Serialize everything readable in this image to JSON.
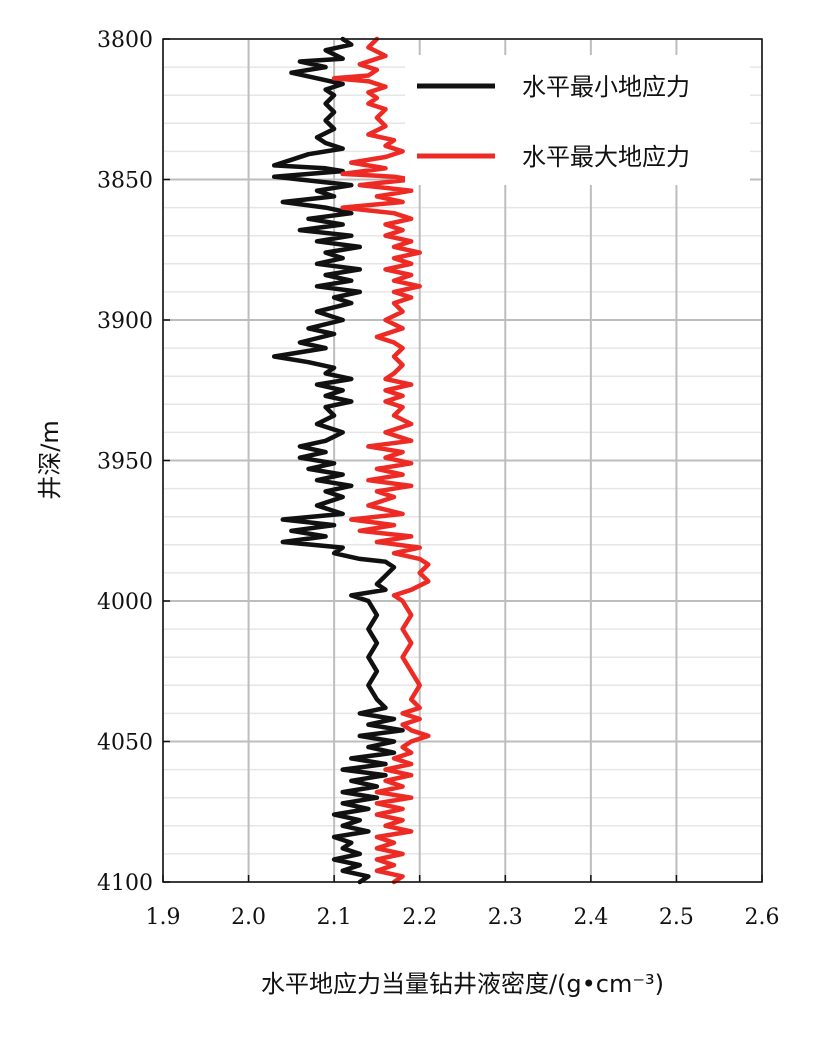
{
  "chart_data": {
    "type": "line",
    "xlabel": "水平地应力当量钻井液密度/(g•cm⁻³)",
    "ylabel": "井深/m",
    "xlim": [
      1.9,
      2.6
    ],
    "ylim": [
      3800,
      4100
    ],
    "y_inverted": true,
    "x_ticks": [
      "1.9",
      "2.0",
      "2.1",
      "2.2",
      "2.3",
      "2.4",
      "2.5",
      "2.6"
    ],
    "y_ticks": [
      "3800",
      "3850",
      "3900",
      "3950",
      "4000",
      "4050",
      "4100"
    ],
    "grid": true,
    "legend_position": "top-right",
    "series": [
      {
        "name": "水平最小地应力",
        "color": "#111111",
        "points": [
          [
            2.11,
            3800
          ],
          [
            2.12,
            3802
          ],
          [
            2.09,
            3804
          ],
          [
            2.11,
            3807
          ],
          [
            2.06,
            3808
          ],
          [
            2.09,
            3810
          ],
          [
            2.05,
            3812
          ],
          [
            2.08,
            3814
          ],
          [
            2.11,
            3816
          ],
          [
            2.09,
            3818
          ],
          [
            2.1,
            3820
          ],
          [
            2.09,
            3823
          ],
          [
            2.1,
            3826
          ],
          [
            2.09,
            3829
          ],
          [
            2.1,
            3832
          ],
          [
            2.08,
            3835
          ],
          [
            2.09,
            3837
          ],
          [
            2.11,
            3839
          ],
          [
            2.07,
            3841
          ],
          [
            2.05,
            3843
          ],
          [
            2.03,
            3845
          ],
          [
            2.09,
            3846
          ],
          [
            2.11,
            3847
          ],
          [
            2.03,
            3849
          ],
          [
            2.06,
            3850
          ],
          [
            2.12,
            3852
          ],
          [
            2.08,
            3854
          ],
          [
            2.1,
            3856
          ],
          [
            2.04,
            3858
          ],
          [
            2.09,
            3860
          ],
          [
            2.12,
            3862
          ],
          [
            2.07,
            3864
          ],
          [
            2.11,
            3866
          ],
          [
            2.06,
            3868
          ],
          [
            2.12,
            3870
          ],
          [
            2.08,
            3872
          ],
          [
            2.13,
            3874
          ],
          [
            2.09,
            3876
          ],
          [
            2.11,
            3878
          ],
          [
            2.08,
            3880
          ],
          [
            2.13,
            3882
          ],
          [
            2.09,
            3884
          ],
          [
            2.12,
            3886
          ],
          [
            2.08,
            3888
          ],
          [
            2.13,
            3890
          ],
          [
            2.1,
            3892
          ],
          [
            2.12,
            3894
          ],
          [
            2.08,
            3897
          ],
          [
            2.11,
            3900
          ],
          [
            2.07,
            3903
          ],
          [
            2.1,
            3905
          ],
          [
            2.06,
            3908
          ],
          [
            2.09,
            3910
          ],
          [
            2.03,
            3913
          ],
          [
            2.07,
            3915
          ],
          [
            2.1,
            3917
          ],
          [
            2.09,
            3919
          ],
          [
            2.12,
            3921
          ],
          [
            2.08,
            3923
          ],
          [
            2.11,
            3925
          ],
          [
            2.09,
            3927
          ],
          [
            2.12,
            3929
          ],
          [
            2.09,
            3931
          ],
          [
            2.1,
            3934
          ],
          [
            2.08,
            3937
          ],
          [
            2.11,
            3940
          ],
          [
            2.09,
            3943
          ],
          [
            2.06,
            3945
          ],
          [
            2.09,
            3947
          ],
          [
            2.06,
            3949
          ],
          [
            2.1,
            3951
          ],
          [
            2.07,
            3953
          ],
          [
            2.11,
            3955
          ],
          [
            2.08,
            3957
          ],
          [
            2.12,
            3959
          ],
          [
            2.09,
            3961
          ],
          [
            2.11,
            3963
          ],
          [
            2.08,
            3966
          ],
          [
            2.11,
            3969
          ],
          [
            2.04,
            3971
          ],
          [
            2.1,
            3973
          ],
          [
            2.05,
            3975
          ],
          [
            2.09,
            3977
          ],
          [
            2.04,
            3979
          ],
          [
            2.11,
            3981
          ],
          [
            2.1,
            3983
          ],
          [
            2.13,
            3985
          ],
          [
            2.16,
            3986
          ],
          [
            2.17,
            3988
          ],
          [
            2.16,
            3991
          ],
          [
            2.15,
            3994
          ],
          [
            2.16,
            3996
          ],
          [
            2.12,
            3998
          ],
          [
            2.14,
            4000
          ],
          [
            2.15,
            4005
          ],
          [
            2.14,
            4010
          ],
          [
            2.15,
            4015
          ],
          [
            2.14,
            4020
          ],
          [
            2.15,
            4025
          ],
          [
            2.14,
            4030
          ],
          [
            2.15,
            4035
          ],
          [
            2.16,
            4038
          ],
          [
            2.13,
            4040
          ],
          [
            2.17,
            4042
          ],
          [
            2.14,
            4044
          ],
          [
            2.18,
            4046
          ],
          [
            2.13,
            4048
          ],
          [
            2.17,
            4050
          ],
          [
            2.14,
            4052
          ],
          [
            2.17,
            4054
          ],
          [
            2.12,
            4056
          ],
          [
            2.16,
            4058
          ],
          [
            2.11,
            4060
          ],
          [
            2.16,
            4062
          ],
          [
            2.12,
            4064
          ],
          [
            2.15,
            4066
          ],
          [
            2.11,
            4068
          ],
          [
            2.15,
            4070
          ],
          [
            2.11,
            4072
          ],
          [
            2.14,
            4074
          ],
          [
            2.1,
            4076
          ],
          [
            2.13,
            4078
          ],
          [
            2.11,
            4080
          ],
          [
            2.14,
            4082
          ],
          [
            2.1,
            4084
          ],
          [
            2.12,
            4086
          ],
          [
            2.11,
            4088
          ],
          [
            2.13,
            4090
          ],
          [
            2.1,
            4092
          ],
          [
            2.13,
            4094
          ],
          [
            2.11,
            4096
          ],
          [
            2.14,
            4098
          ],
          [
            2.13,
            4100
          ]
        ]
      },
      {
        "name": "水平最大地应力",
        "color": "#ee2a24",
        "points": [
          [
            2.15,
            3800
          ],
          [
            2.14,
            3803
          ],
          [
            2.16,
            3806
          ],
          [
            2.13,
            3809
          ],
          [
            2.15,
            3811
          ],
          [
            2.14,
            3813
          ],
          [
            2.1,
            3814
          ],
          [
            2.14,
            3815
          ],
          [
            2.16,
            3817
          ],
          [
            2.14,
            3819
          ],
          [
            2.15,
            3821
          ],
          [
            2.14,
            3823
          ],
          [
            2.16,
            3825
          ],
          [
            2.15,
            3828
          ],
          [
            2.16,
            3831
          ],
          [
            2.14,
            3834
          ],
          [
            2.17,
            3836
          ],
          [
            2.16,
            3838
          ],
          [
            2.18,
            3840
          ],
          [
            2.16,
            3842
          ],
          [
            2.12,
            3844
          ],
          [
            2.16,
            3846
          ],
          [
            2.11,
            3848
          ],
          [
            2.17,
            3849
          ],
          [
            2.19,
            3850
          ],
          [
            2.13,
            3852
          ],
          [
            2.19,
            3854
          ],
          [
            2.15,
            3856
          ],
          [
            2.18,
            3858
          ],
          [
            2.11,
            3860
          ],
          [
            2.17,
            3862
          ],
          [
            2.19,
            3864
          ],
          [
            2.16,
            3866
          ],
          [
            2.18,
            3868
          ],
          [
            2.16,
            3870
          ],
          [
            2.19,
            3872
          ],
          [
            2.17,
            3874
          ],
          [
            2.2,
            3876
          ],
          [
            2.17,
            3878
          ],
          [
            2.19,
            3880
          ],
          [
            2.16,
            3882
          ],
          [
            2.19,
            3884
          ],
          [
            2.17,
            3886
          ],
          [
            2.2,
            3888
          ],
          [
            2.17,
            3890
          ],
          [
            2.19,
            3892
          ],
          [
            2.17,
            3894
          ],
          [
            2.18,
            3897
          ],
          [
            2.16,
            3900
          ],
          [
            2.18,
            3903
          ],
          [
            2.15,
            3906
          ],
          [
            2.17,
            3908
          ],
          [
            2.18,
            3910
          ],
          [
            2.17,
            3913
          ],
          [
            2.18,
            3916
          ],
          [
            2.17,
            3919
          ],
          [
            2.16,
            3921
          ],
          [
            2.19,
            3923
          ],
          [
            2.16,
            3925
          ],
          [
            2.18,
            3927
          ],
          [
            2.16,
            3929
          ],
          [
            2.18,
            3931
          ],
          [
            2.17,
            3934
          ],
          [
            2.19,
            3937
          ],
          [
            2.16,
            3940
          ],
          [
            2.19,
            3943
          ],
          [
            2.14,
            3945
          ],
          [
            2.18,
            3947
          ],
          [
            2.16,
            3949
          ],
          [
            2.19,
            3951
          ],
          [
            2.15,
            3953
          ],
          [
            2.18,
            3955
          ],
          [
            2.14,
            3957
          ],
          [
            2.19,
            3959
          ],
          [
            2.15,
            3961
          ],
          [
            2.17,
            3963
          ],
          [
            2.14,
            3966
          ],
          [
            2.18,
            3969
          ],
          [
            2.12,
            3971
          ],
          [
            2.17,
            3973
          ],
          [
            2.13,
            3975
          ],
          [
            2.19,
            3977
          ],
          [
            2.15,
            3979
          ],
          [
            2.2,
            3981
          ],
          [
            2.17,
            3983
          ],
          [
            2.2,
            3985
          ],
          [
            2.21,
            3987
          ],
          [
            2.2,
            3990
          ],
          [
            2.21,
            3993
          ],
          [
            2.19,
            3996
          ],
          [
            2.17,
            3998
          ],
          [
            2.18,
            4000
          ],
          [
            2.19,
            4005
          ],
          [
            2.18,
            4010
          ],
          [
            2.19,
            4015
          ],
          [
            2.18,
            4020
          ],
          [
            2.19,
            4025
          ],
          [
            2.2,
            4030
          ],
          [
            2.19,
            4035
          ],
          [
            2.2,
            4038
          ],
          [
            2.18,
            4040
          ],
          [
            2.2,
            4042
          ],
          [
            2.18,
            4044
          ],
          [
            2.19,
            4046
          ],
          [
            2.21,
            4048
          ],
          [
            2.19,
            4050
          ],
          [
            2.18,
            4052
          ],
          [
            2.19,
            4054
          ],
          [
            2.17,
            4056
          ],
          [
            2.19,
            4058
          ],
          [
            2.16,
            4060
          ],
          [
            2.19,
            4062
          ],
          [
            2.16,
            4064
          ],
          [
            2.18,
            4066
          ],
          [
            2.15,
            4068
          ],
          [
            2.19,
            4070
          ],
          [
            2.15,
            4072
          ],
          [
            2.18,
            4074
          ],
          [
            2.15,
            4076
          ],
          [
            2.18,
            4078
          ],
          [
            2.16,
            4080
          ],
          [
            2.19,
            4082
          ],
          [
            2.15,
            4084
          ],
          [
            2.17,
            4086
          ],
          [
            2.15,
            4088
          ],
          [
            2.18,
            4090
          ],
          [
            2.15,
            4092
          ],
          [
            2.17,
            4094
          ],
          [
            2.15,
            4096
          ],
          [
            2.18,
            4098
          ],
          [
            2.17,
            4100
          ]
        ]
      }
    ]
  }
}
